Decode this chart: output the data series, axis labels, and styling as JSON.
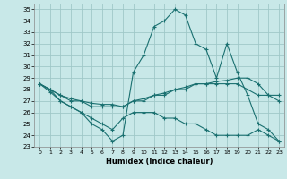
{
  "xlabel": "Humidex (Indice chaleur)",
  "background_color": "#c8e8e8",
  "grid_color": "#a0c8c8",
  "line_color": "#1a7070",
  "xlim": [
    -0.5,
    23.5
  ],
  "ylim": [
    23,
    35.5
  ],
  "yticks": [
    23,
    24,
    25,
    26,
    27,
    28,
    29,
    30,
    31,
    32,
    33,
    34,
    35
  ],
  "xticks": [
    0,
    1,
    2,
    3,
    4,
    5,
    6,
    7,
    8,
    9,
    10,
    11,
    12,
    13,
    14,
    15,
    16,
    17,
    18,
    19,
    20,
    21,
    22,
    23
  ],
  "line1_x": [
    0,
    1,
    2,
    3,
    4,
    5,
    6,
    7,
    8,
    9,
    10,
    11,
    12,
    13,
    14,
    15,
    16,
    17,
    18,
    19,
    20,
    21,
    22,
    23
  ],
  "line1_y": [
    28.5,
    28.0,
    27.0,
    26.5,
    26.0,
    25.0,
    24.5,
    23.5,
    24.0,
    29.5,
    31.0,
    33.5,
    34.0,
    35.0,
    34.5,
    32.0,
    31.5,
    29.0,
    32.0,
    29.5,
    27.5,
    25.0,
    24.5,
    23.5
  ],
  "line2_x": [
    0,
    1,
    2,
    3,
    4,
    5,
    6,
    7,
    8,
    9,
    10,
    11,
    12,
    13,
    14,
    15,
    16,
    17,
    18,
    19,
    20,
    21,
    22,
    23
  ],
  "line2_y": [
    28.5,
    28.0,
    27.5,
    27.2,
    27.0,
    26.8,
    26.7,
    26.7,
    26.5,
    27.0,
    27.2,
    27.5,
    27.7,
    28.0,
    28.2,
    28.5,
    28.5,
    28.7,
    28.8,
    29.0,
    29.0,
    28.5,
    27.5,
    27.0
  ],
  "line3_x": [
    0,
    1,
    2,
    3,
    4,
    5,
    6,
    7,
    8,
    9,
    10,
    11,
    12,
    13,
    14,
    15,
    16,
    17,
    18,
    19,
    20,
    21,
    22,
    23
  ],
  "line3_y": [
    28.5,
    28.0,
    27.5,
    27.0,
    27.0,
    26.5,
    26.5,
    26.5,
    26.5,
    27.0,
    27.0,
    27.5,
    27.5,
    28.0,
    28.0,
    28.5,
    28.5,
    28.5,
    28.5,
    28.5,
    28.0,
    27.5,
    27.5,
    27.5
  ],
  "line4_x": [
    0,
    1,
    2,
    3,
    4,
    5,
    6,
    7,
    8,
    9,
    10,
    11,
    12,
    13,
    14,
    15,
    16,
    17,
    18,
    19,
    20,
    21,
    22,
    23
  ],
  "line4_y": [
    28.5,
    27.8,
    27.0,
    26.5,
    26.0,
    25.5,
    25.0,
    24.5,
    25.5,
    26.0,
    26.0,
    26.0,
    25.5,
    25.5,
    25.0,
    25.0,
    24.5,
    24.0,
    24.0,
    24.0,
    24.0,
    24.5,
    24.0,
    23.5
  ]
}
